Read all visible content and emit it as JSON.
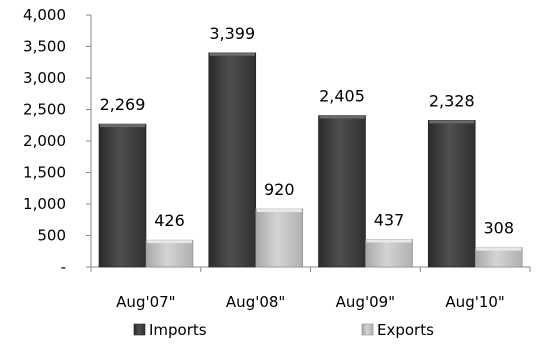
{
  "chart_data": {
    "type": "bar",
    "categories": [
      "Aug'07\"",
      "Aug'08\"",
      "Aug'09\"",
      "Aug'10\""
    ],
    "series": [
      {
        "name": "Imports",
        "values": [
          2269,
          3399,
          2405,
          2328
        ],
        "color": "#4a4a4a"
      },
      {
        "name": "Exports",
        "values": [
          426,
          920,
          437,
          308
        ],
        "color": "#c8c8c8"
      }
    ],
    "value_labels": [
      [
        "2,269",
        "3,399",
        "2,405",
        "2,328"
      ],
      [
        "426",
        "920",
        "437",
        "308"
      ]
    ],
    "y_ticks": [
      0,
      500,
      1000,
      1500,
      2000,
      2500,
      3000,
      3500,
      4000
    ],
    "y_tick_labels": [
      "-",
      "500",
      "1,000",
      "1,500",
      "2,000",
      "2,500",
      "3,000",
      "3,500",
      "4,000"
    ],
    "ylim": [
      0,
      4000
    ],
    "grid": false,
    "legend_position": "bottom",
    "title": "",
    "xlabel": "",
    "ylabel": ""
  }
}
